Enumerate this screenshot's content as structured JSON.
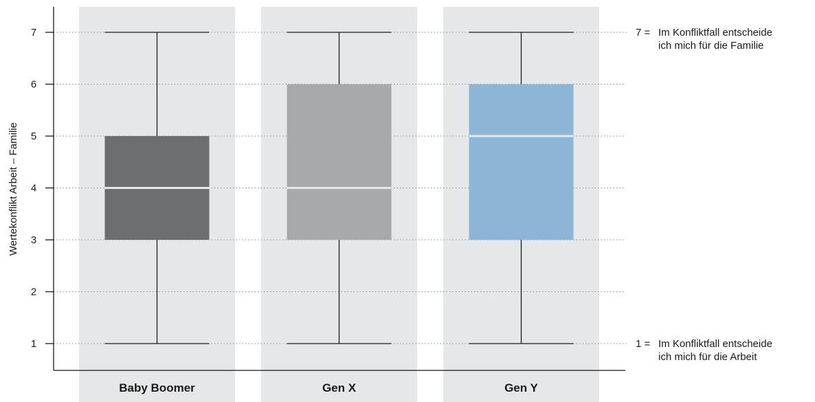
{
  "chart_data": {
    "type": "boxplot",
    "ylabel": "Wertekonflikt Arbeit – Familie",
    "xlabel": "",
    "ylim": [
      0.7,
      7.5
    ],
    "yticks": [
      1,
      2,
      3,
      4,
      5,
      6,
      7
    ],
    "grid": "horizontal dotted",
    "categories": [
      "Baby Boomer",
      "Gen X",
      "Gen Y"
    ],
    "series": [
      {
        "category": "Baby Boomer",
        "min": 1,
        "q1": 3,
        "median": 4,
        "q3": 5,
        "max": 7,
        "color": "#6d6e71"
      },
      {
        "category": "Gen X",
        "min": 1,
        "q1": 3,
        "median": 4,
        "q3": 6,
        "max": 7,
        "color": "#a7a9ac"
      },
      {
        "category": "Gen Y",
        "min": 1,
        "q1": 3,
        "median": 5,
        "q3": 6,
        "max": 7,
        "color": "#8cb6d8"
      }
    ],
    "annotations": [
      {
        "value": 7,
        "prefix": "7 =",
        "lines": [
          "Im Konfliktfall entscheide",
          "ich mich für die Familie"
        ]
      },
      {
        "value": 1,
        "prefix": "1 =",
        "lines": [
          "Im Konfliktfall entscheide",
          "ich mich für die Arbeit"
        ]
      }
    ]
  },
  "colors": {
    "panel": "#e6e7e9",
    "axis": "#1a1a1a",
    "grid": "#8a8a8a",
    "median": "#e6e7e9",
    "whisker": "#1a1a1a"
  }
}
